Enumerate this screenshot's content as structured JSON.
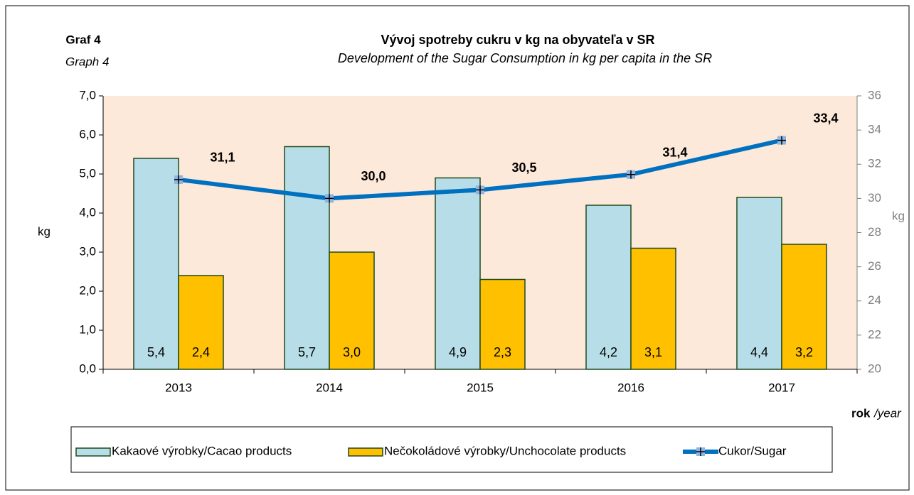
{
  "chart_data": {
    "type": "bar",
    "label": "Graf 4",
    "label_en": "Graph  4",
    "title": "Vývoj spotreby cukru v kg na obyvateľa v SR",
    "subtitle": "Development of the Sugar Consumption in kg per capita in the SR",
    "y_label": "kg",
    "y2_label": "kg",
    "x_label": [
      "rok",
      "/year"
    ],
    "categories": [
      "2013",
      "2014",
      "2015",
      "2016",
      "2017"
    ],
    "series": [
      {
        "name": "Kakaové výrobky/Cacao products",
        "type": "bar",
        "color": "#b7dee8",
        "values": [
          5.4,
          5.7,
          4.9,
          4.2,
          4.4
        ],
        "value_labels": [
          "5,4",
          "5,7",
          "4,9",
          "4,2",
          "4,4"
        ]
      },
      {
        "name": "Nečokoládové výrobky/Unchocolate  products",
        "type": "bar",
        "color": "#ffc000",
        "values": [
          2.4,
          3.0,
          2.3,
          3.1,
          3.2
        ],
        "value_labels": [
          "2,4",
          "3,0",
          "2,3",
          "3,1",
          "3,2"
        ]
      },
      {
        "name": "Cukor/Sugar",
        "type": "line",
        "axis": "y2",
        "color": "#0070c0",
        "values": [
          31.1,
          30.0,
          30.5,
          31.4,
          33.4
        ],
        "value_labels": [
          "31,1",
          "30,0",
          "30,5",
          "31,4",
          "33,4"
        ]
      }
    ],
    "ylim": [
      0,
      7
    ],
    "yticks": [
      {
        "value": 0,
        "label": "0,0"
      },
      {
        "value": 1,
        "label": "1,0"
      },
      {
        "value": 2,
        "label": "2,0"
      },
      {
        "value": 3,
        "label": "3,0"
      },
      {
        "value": 4,
        "label": "4,0"
      },
      {
        "value": 5,
        "label": "5,0"
      },
      {
        "value": 6,
        "label": "6,0"
      },
      {
        "value": 7,
        "label": "7,0"
      }
    ],
    "y2lim": [
      20,
      36
    ],
    "y2ticks": [
      20,
      22,
      24,
      26,
      28,
      30,
      32,
      34,
      36
    ],
    "legend": "bottom"
  }
}
